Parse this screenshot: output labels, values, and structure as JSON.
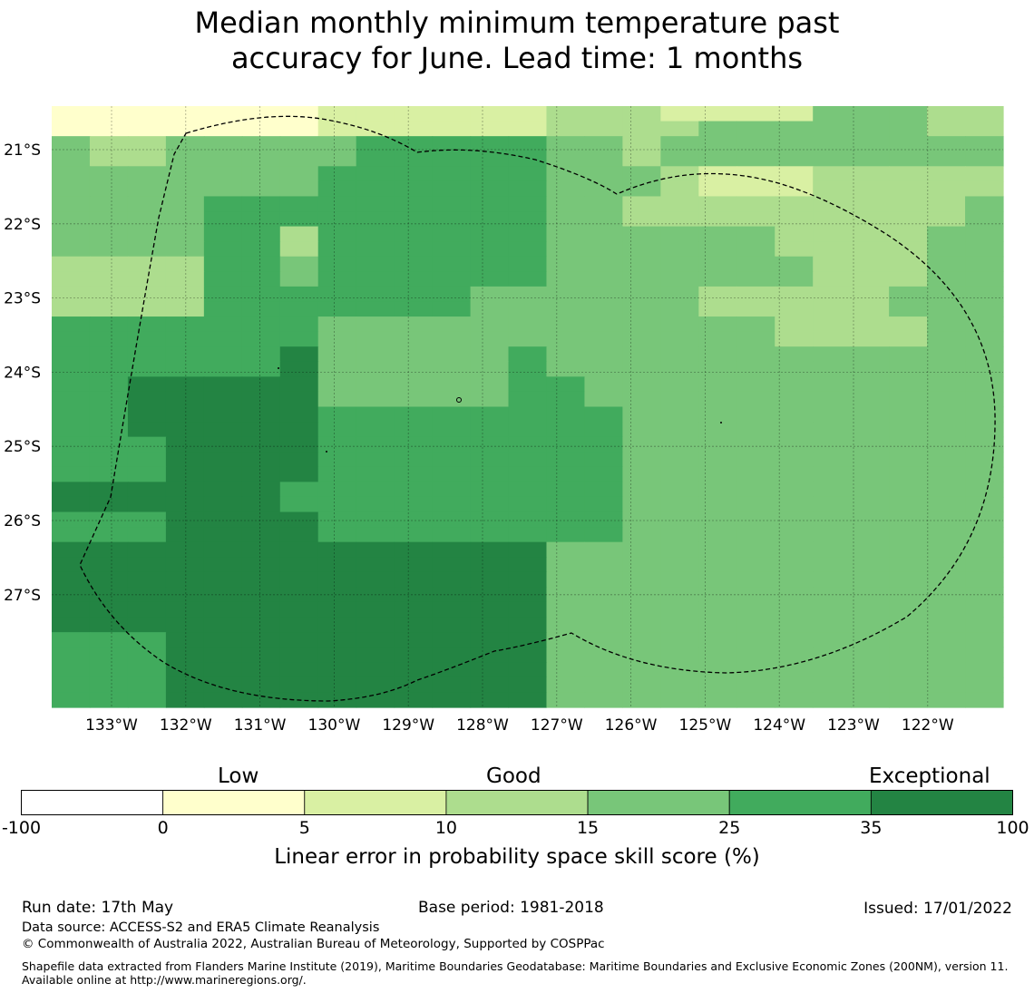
{
  "title_line1": "Median monthly minimum temperature past",
  "title_line2": "accuracy for June. Lead time: 1 months",
  "map": {
    "lat_labels": [
      "21°S",
      "22°S",
      "23°S",
      "24°S",
      "25°S",
      "26°S",
      "27°S"
    ],
    "lon_labels": [
      "133°W",
      "132°W",
      "131°W",
      "130°W",
      "129°W",
      "128°W",
      "127°W",
      "126°W",
      "125°W",
      "124°W",
      "123°W",
      "122°W"
    ],
    "bin_colors": [
      "#ffffff",
      "#ffffcc",
      "#d9f0a3",
      "#addd8e",
      "#78c679",
      "#41ab5d",
      "#238443"
    ],
    "grid_rows": [
      "1111111222222333222244433",
      "1111111222222333344444433",
      "4334444455555443444444444",
      "4334444455555443444444444",
      "4444444555555444322233333",
      "4444444555555444322233333",
      "4444555555555443333333334",
      "4444555555555443333333334",
      "4444553555555444444333344",
      "4444553555555444444333344",
      "3333554555555444444433344",
      "3333554555555444444433344",
      "3333555555544444433333444",
      "3333555555544444433333444",
      "5555555444444444444333344",
      "5555555444444444444333344",
      "5555556444445444444444444",
      "5555556444445444444444444",
      "5566666444445544444444444",
      "5566666444445544444444444",
      "5566666555555554444444444",
      "5566666555555554444444444",
      "5556666555555554444444444",
      "5556666555555554444444444",
      "5556666555555554444444444",
      "6666665555555554444444444",
      "6666665555555554444444444",
      "5556666555555554444444444",
      "5556666555555554444444444",
      "6666666666666444444444444",
      "6666666666666444444444444",
      "6666666666666444444444444",
      "6666666666666444444444444",
      "6666666666666444444444444",
      "6666666666666444444444444",
      "5556666666666444444444444",
      "5556666666666444444444444",
      "5556666666666444444444444",
      "5556666666666444444444444",
      "5556666666666444444444444"
    ]
  },
  "colorbar": {
    "category_labels": [
      "Low",
      "Good",
      "Exceptional"
    ],
    "ticks": [
      "-100",
      "0",
      "5",
      "10",
      "15",
      "25",
      "35",
      "100"
    ],
    "colors": [
      "#ffffff",
      "#ffffcc",
      "#d9f0a3",
      "#addd8e",
      "#78c679",
      "#41ab5d",
      "#238443"
    ],
    "title": "Linear error in probability space skill score (%)"
  },
  "footer": {
    "run_date": "Run date: 17th May",
    "base_period": "Base period: 1981-2018",
    "issued": "Issued: 17/01/2022",
    "data_source": "Data source: ACCESS-S2 and ERA5 Climate Reanalysis",
    "copyright": "© Commonwealth of Australia 2022, Australian Bureau of Meteorology, Supported by COSPPac",
    "shapefile_note": "Shapefile data extracted from Flanders Marine Institute (2019), Maritime Boundaries Geodatabase: Maritime Boundaries and Exclusive Economic Zones (200NM), version 11. Available online at http://www.marineregions.org/."
  }
}
